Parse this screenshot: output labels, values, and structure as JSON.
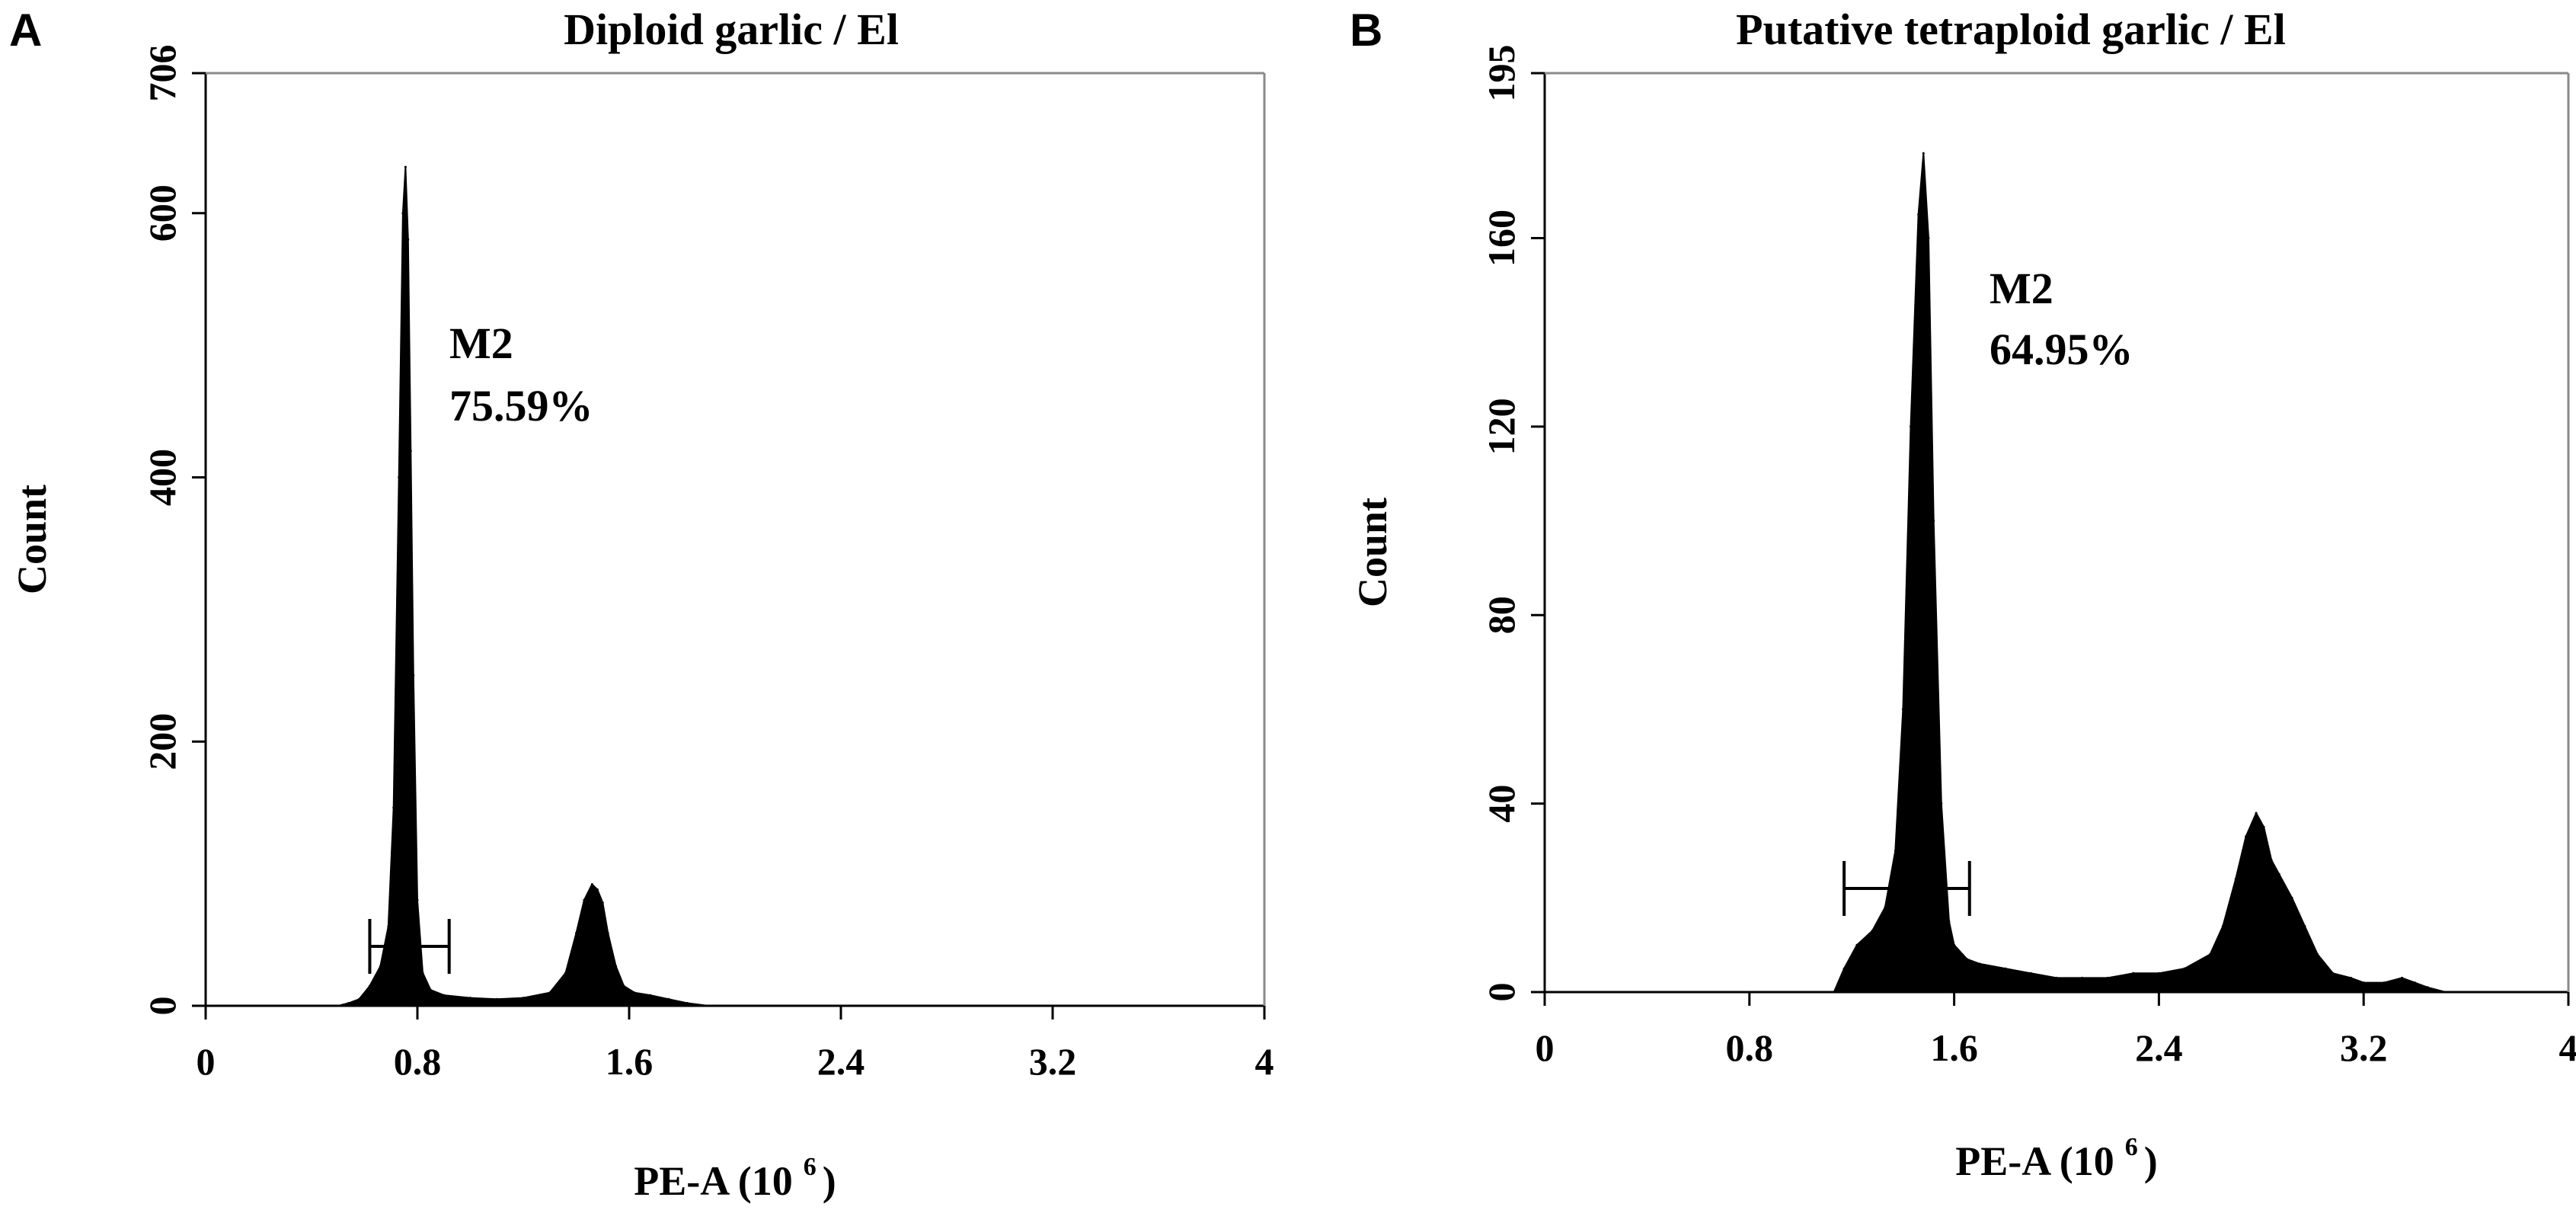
{
  "chart_data": [
    {
      "panel": "A",
      "type": "area",
      "title": "Diploid garlic / El",
      "xlabel": "PE-A (10",
      "xlabel_sup": "6",
      "xlabel_close": ")",
      "ylabel": "Count",
      "xlim": [
        0,
        4
      ],
      "ylim": [
        0,
        706
      ],
      "xticks": [
        {
          "v": 0,
          "label": "0"
        },
        {
          "v": 0.8,
          "label": "0.8"
        },
        {
          "v": 1.6,
          "label": "1.6"
        },
        {
          "v": 2.4,
          "label": "2.4"
        },
        {
          "v": 3.2,
          "label": "3.2"
        },
        {
          "v": 4,
          "label": "4"
        }
      ],
      "yticks": [
        {
          "v": 0,
          "label": "0"
        },
        {
          "v": 200,
          "label": "200"
        },
        {
          "v": 400,
          "label": "400"
        },
        {
          "v": 600,
          "label": "600"
        },
        {
          "v": 706,
          "label": "706"
        }
      ],
      "series": [
        {
          "x": [
            0.5,
            0.54,
            0.58,
            0.62,
            0.66,
            0.69,
            0.71,
            0.73,
            0.745,
            0.755,
            0.765,
            0.775,
            0.785,
            0.8,
            0.82,
            0.85,
            0.9,
            1.0,
            1.1,
            1.2,
            1.3,
            1.36,
            1.4,
            1.43,
            1.46,
            1.48,
            1.5,
            1.52,
            1.55,
            1.58,
            1.62,
            1.68,
            1.75,
            1.82,
            1.9
          ],
          "y": [
            0,
            2,
            5,
            15,
            30,
            60,
            150,
            400,
            600,
            635,
            580,
            420,
            250,
            80,
            25,
            12,
            8,
            6,
            5,
            6,
            10,
            25,
            55,
            80,
            92,
            88,
            78,
            55,
            30,
            15,
            10,
            8,
            5,
            2,
            0
          ]
        }
      ],
      "gate": {
        "name": "M2",
        "percent": "75.59%",
        "x_start": 0.62,
        "x_end": 0.92,
        "y": 45
      }
    },
    {
      "panel": "B",
      "type": "area",
      "title": "Putative tetraploid garlic / El",
      "xlabel": "PE-A (10",
      "xlabel_sup": "6",
      "xlabel_close": ")",
      "ylabel": "Count",
      "xlim": [
        0,
        4
      ],
      "ylim": [
        0,
        195
      ],
      "xticks": [
        {
          "v": 0,
          "label": "0"
        },
        {
          "v": 0.8,
          "label": "0.8"
        },
        {
          "v": 1.6,
          "label": "1.6"
        },
        {
          "v": 2.4,
          "label": "2.4"
        },
        {
          "v": 3.2,
          "label": "3.2"
        },
        {
          "v": 4,
          "label": "4"
        }
      ],
      "yticks": [
        {
          "v": 0,
          "label": "0"
        },
        {
          "v": 40,
          "label": "40"
        },
        {
          "v": 80,
          "label": "80"
        },
        {
          "v": 120,
          "label": "120"
        },
        {
          "v": 160,
          "label": "160"
        },
        {
          "v": 195,
          "label": "195"
        }
      ],
      "series": [
        {
          "x": [
            1.13,
            1.17,
            1.22,
            1.28,
            1.33,
            1.37,
            1.4,
            1.43,
            1.46,
            1.48,
            1.5,
            1.52,
            1.55,
            1.58,
            1.6,
            1.65,
            1.7,
            1.8,
            1.9,
            2.0,
            2.1,
            2.2,
            2.3,
            2.4,
            2.5,
            2.6,
            2.65,
            2.7,
            2.74,
            2.78,
            2.81,
            2.84,
            2.87,
            2.92,
            2.97,
            3.02,
            3.08,
            3.15,
            3.2,
            3.28,
            3.35,
            3.4,
            3.45,
            3.52
          ],
          "y": [
            0,
            5,
            10,
            13,
            18,
            30,
            60,
            120,
            165,
            178,
            160,
            100,
            40,
            15,
            10,
            7,
            6,
            5,
            4,
            3,
            3,
            3,
            4,
            4,
            5,
            8,
            14,
            24,
            33,
            38,
            35,
            28,
            25,
            20,
            14,
            8,
            4,
            3,
            2,
            2,
            3,
            2,
            1,
            0
          ]
        }
      ],
      "gate": {
        "name": "M2",
        "percent": "64.95%",
        "x_start": 1.17,
        "x_end": 1.66,
        "y": 22
      }
    }
  ]
}
